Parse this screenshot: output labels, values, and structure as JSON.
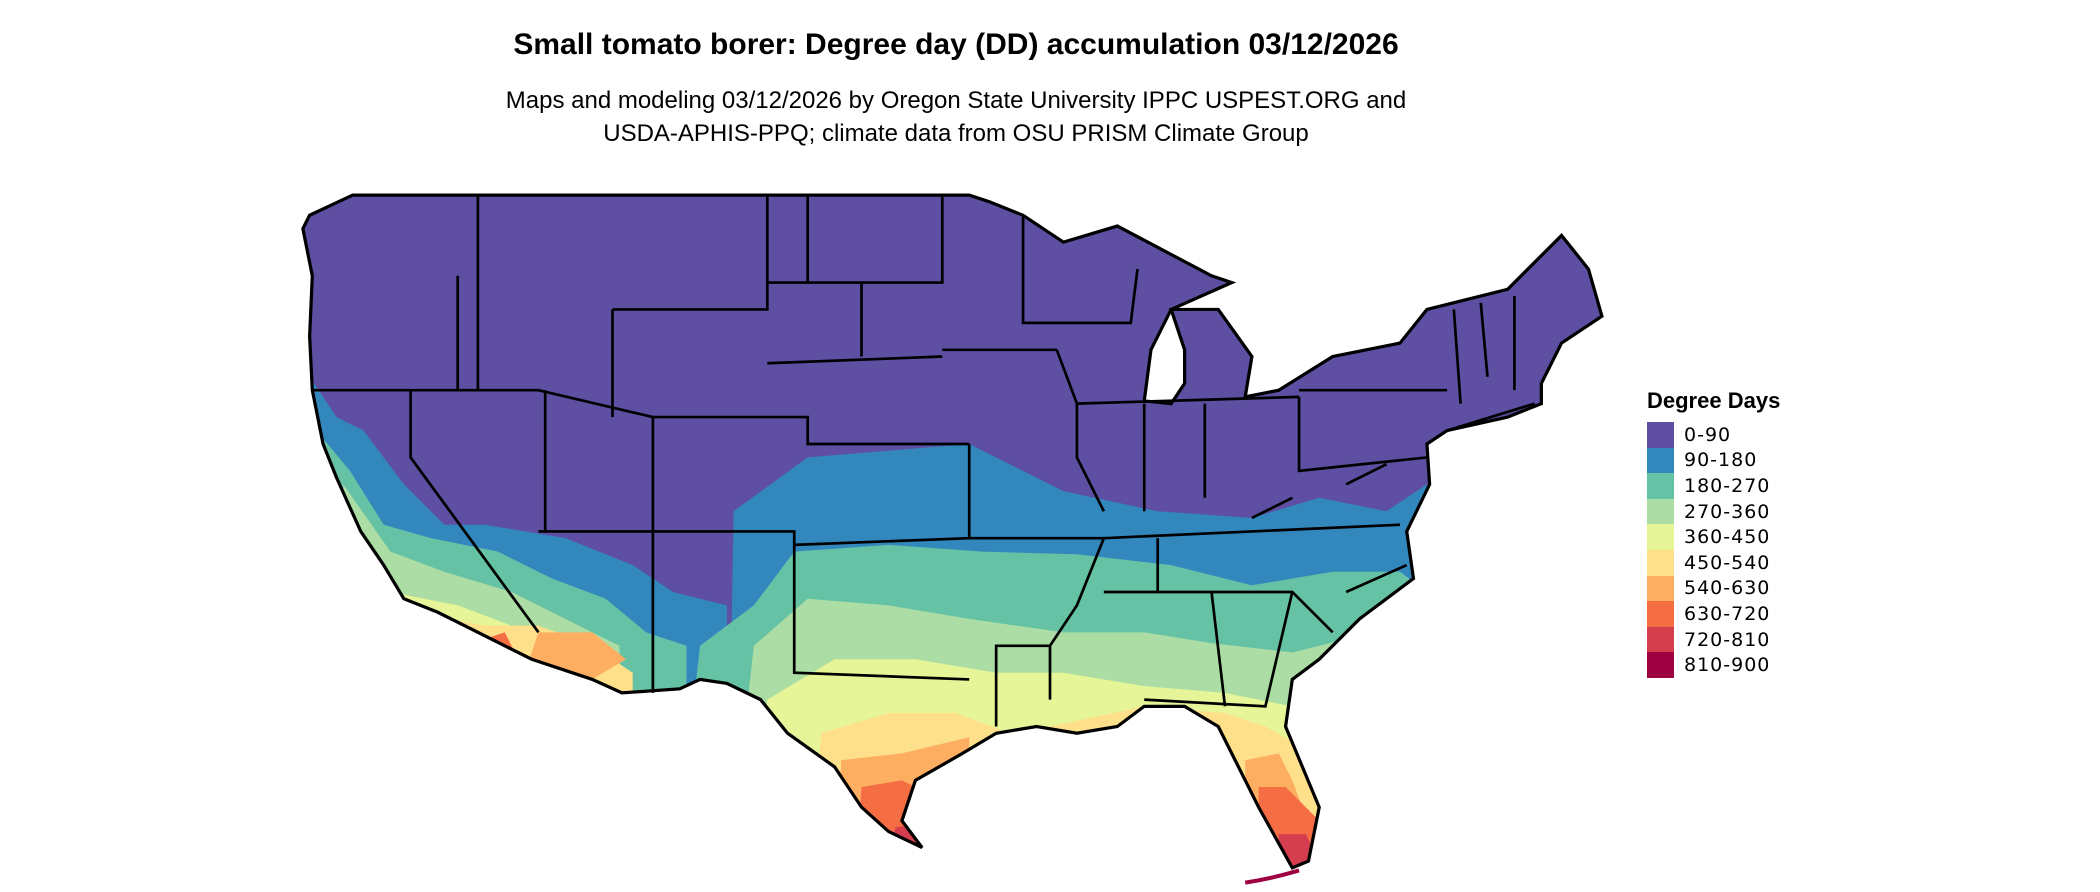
{
  "title": "Small tomato borer: Degree day (DD) accumulation 03/12/2026",
  "subtitle_line1": "Maps and modeling 03/12/2026 by Oregon State University IPPC USPEST.ORG and",
  "subtitle_line2": "USDA-APHIS-PPQ; climate data from OSU PRISM Climate Group",
  "legend": {
    "title": "Degree Days",
    "items": [
      {
        "label": "0-90",
        "color": "#5E4FA2"
      },
      {
        "label": "90-180",
        "color": "#3288BD"
      },
      {
        "label": "180-270",
        "color": "#66C2A5"
      },
      {
        "label": "270-360",
        "color": "#ABDDA4"
      },
      {
        "label": "360-450",
        "color": "#E6F598"
      },
      {
        "label": "450-540",
        "color": "#FEE08B"
      },
      {
        "label": "540-630",
        "color": "#FDAE61"
      },
      {
        "label": "630-720",
        "color": "#F46D43"
      },
      {
        "label": "720-810",
        "color": "#D53E4F"
      },
      {
        "label": "810-900",
        "color": "#9E0142"
      }
    ]
  },
  "map": {
    "region": "Contiguous United States",
    "state_border_color": "#000000"
  }
}
